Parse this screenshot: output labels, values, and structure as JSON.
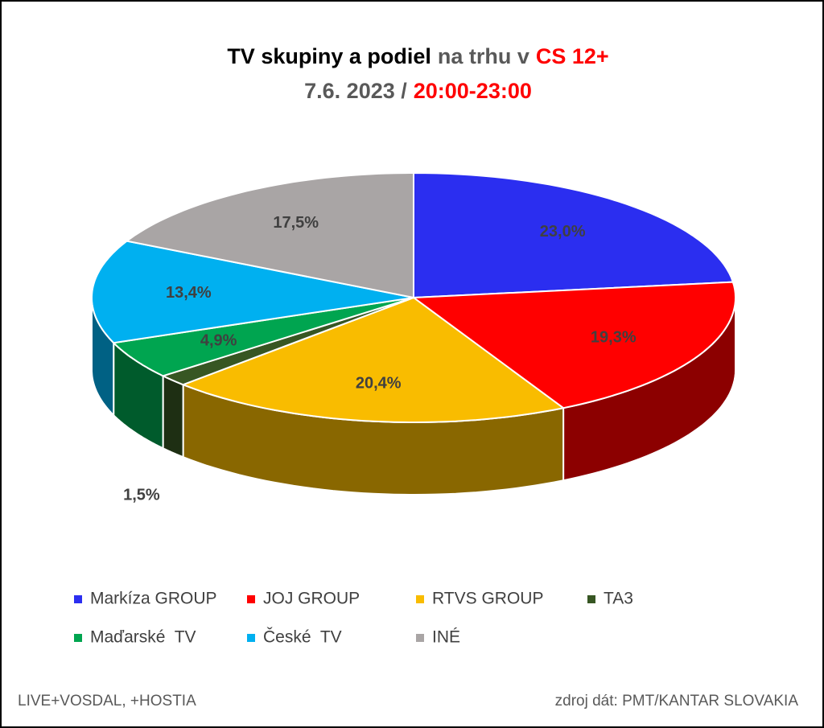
{
  "chart_data": {
    "type": "pie3d",
    "title": [
      "TV skupiny a podiel",
      "na trhu v",
      "CS 12+"
    ],
    "subtitle": [
      "7.6. 2023 /",
      "20:00-23:00"
    ],
    "annotations": [
      "LIVE+VOSDAL, +HOSTIA",
      "zdroj dát: PMT/KANTAR SLOVAKIA"
    ],
    "categories": [
      "Markíza GROUP",
      "JOJ GROUP",
      "RTVS GROUP",
      "TA3",
      "Maďarské  TV",
      "České  TV",
      "INÉ"
    ],
    "values": [
      23.0,
      19.3,
      20.4,
      1.5,
      4.9,
      13.4,
      17.5
    ],
    "value_labels": [
      "23,0%",
      "19,3%",
      "20,4%",
      "1,5%",
      "4,9%",
      "13,4%",
      "17,5%"
    ],
    "colors": [
      "#2b2ef0",
      "#ff0000",
      "#f9bc00",
      "#375623",
      "#00a550",
      "#00b0f0",
      "#a9a5a5"
    ]
  }
}
